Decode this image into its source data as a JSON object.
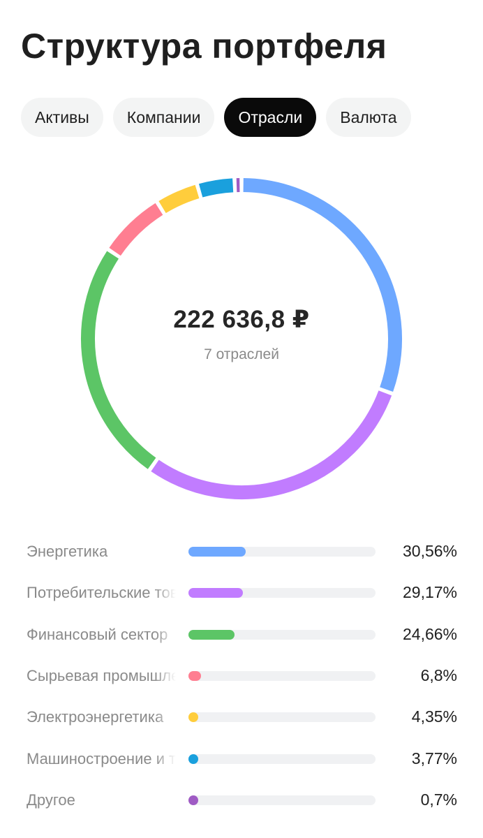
{
  "header": {
    "title": "Структура портфеля"
  },
  "tabs": [
    {
      "label": "Активы",
      "active": false
    },
    {
      "label": "Компании",
      "active": false
    },
    {
      "label": "Отрасли",
      "active": true
    },
    {
      "label": "Валюта",
      "active": false
    }
  ],
  "donut": {
    "total": "222 636,8 ₽",
    "subtitle": "7 отраслей"
  },
  "chart_data": {
    "type": "pie",
    "style": "donut",
    "series": [
      {
        "name": "Энергетика",
        "value": 30.56,
        "label": "30,56%",
        "color": "#6ea8ff"
      },
      {
        "name": "Потребительские товары",
        "value": 29.17,
        "label": "29,17%",
        "color": "#c17cff"
      },
      {
        "name": "Финансовый сектор",
        "value": 24.66,
        "label": "24,66%",
        "color": "#5cc566"
      },
      {
        "name": "Сырьевая промышленность",
        "value": 6.8,
        "label": "6,8%",
        "color": "#ff7e91"
      },
      {
        "name": "Электроэнергетика",
        "value": 4.35,
        "label": "4,35%",
        "color": "#ffcd3c"
      },
      {
        "name": "Машиностроение и транспорт",
        "value": 3.77,
        "label": "3,77%",
        "color": "#1aa0dd"
      },
      {
        "name": "Другое",
        "value": 0.7,
        "label": "0,7%",
        "color": "#9f5bc4"
      }
    ],
    "legend": "bottom"
  }
}
